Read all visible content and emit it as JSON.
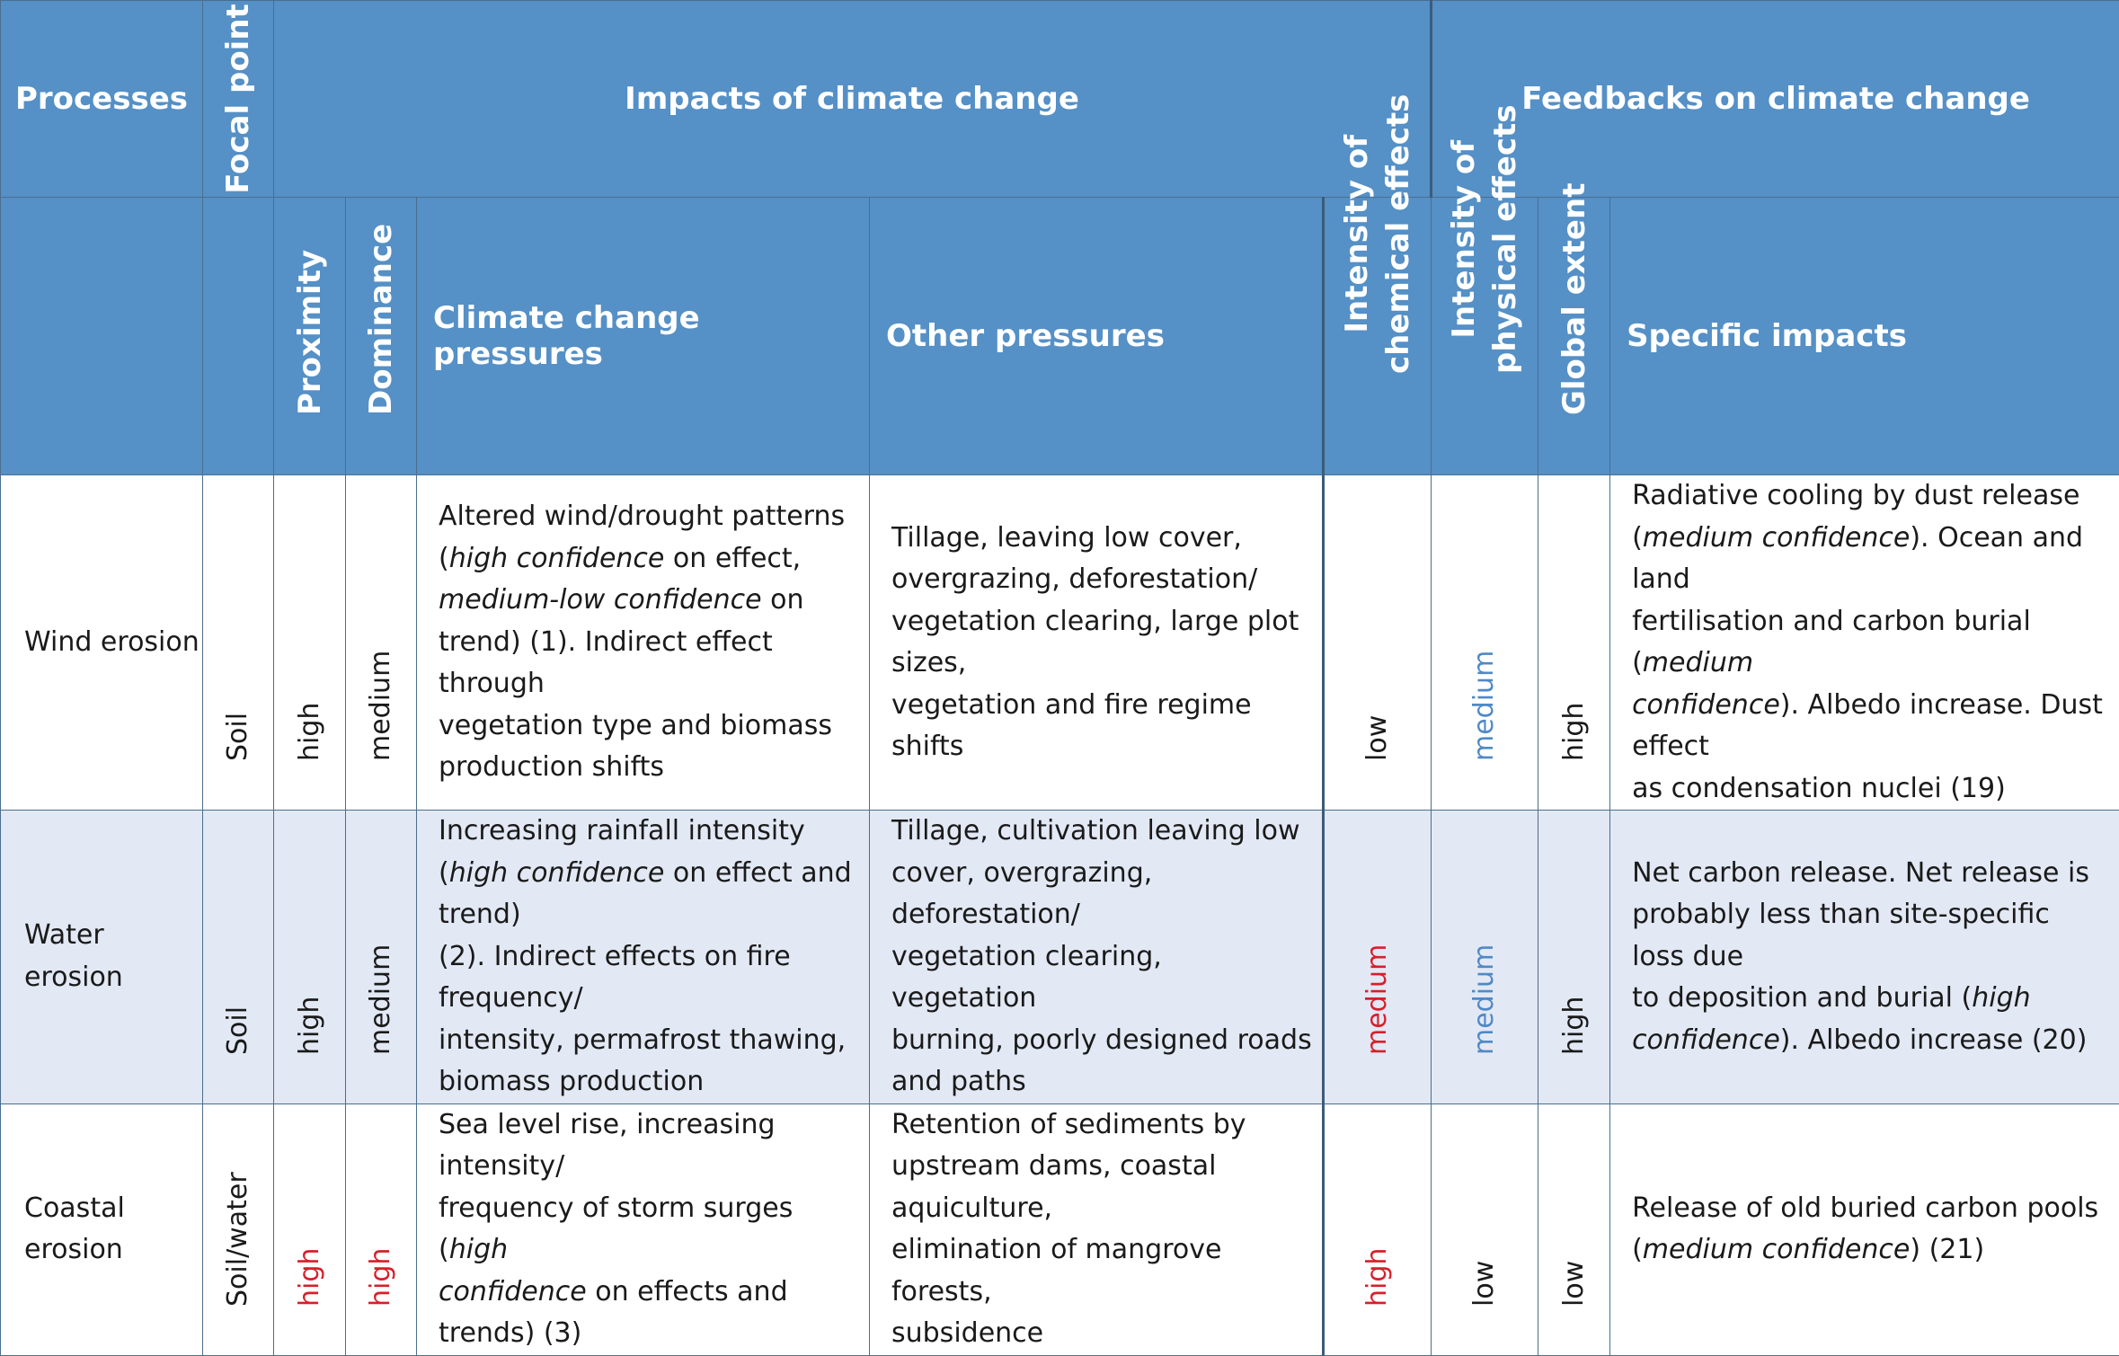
{
  "header": {
    "processes": "Processes",
    "focal_point": "Focal point",
    "impacts": "Impacts of climate change",
    "feedbacks": "Feedbacks on climate change",
    "proximity": "Proximity",
    "dominance": "Dominance",
    "climate_pressures": "Climate change pressures",
    "other_pressures": "Other pressures",
    "chem_line1": "Intensity of",
    "chem_line2": "chemical effects",
    "phys_line1": "Intensity of",
    "phys_line2": "physical effects",
    "global_extent": "Global extent",
    "specific_impacts": "Specific impacts"
  },
  "rows": [
    {
      "process": "Wind erosion",
      "focal": "Soil",
      "proximity": "high",
      "dominance": "medium",
      "climate_pressures": [
        "Altered wind/drought patterns",
        "(",
        "high confidence",
        " on effect,",
        "medium-low confidence",
        " on",
        "trend) (1). Indirect effect through",
        "vegetation type and biomass",
        "production shifts"
      ],
      "other_pressures": [
        "Tillage, leaving low cover,",
        "overgrazing, deforestation/",
        "vegetation clearing, large plot sizes,",
        "vegetation and fire regime shifts"
      ],
      "chemical": "low",
      "physical": "medium",
      "global_extent": "high",
      "specific_impacts": [
        "Radiative cooling by dust release",
        "(",
        "medium confidence",
        "). Ocean and land",
        "fertilisation and carbon burial (",
        "medium",
        "confidence",
        "). Albedo increase. Dust effect",
        "as condensation nuclei (19)"
      ]
    },
    {
      "process": "Water erosion",
      "focal": "Soil",
      "proximity": "high",
      "dominance": "medium",
      "climate_pressures": [
        "Increasing rainfall intensity",
        "(",
        "high confidence",
        " on effect and trend)",
        "(2). Indirect effects on fire frequency/",
        "intensity, permafrost thawing,",
        "biomass production"
      ],
      "other_pressures": [
        "Tillage, cultivation leaving low",
        "cover, overgrazing, deforestation/",
        "vegetation clearing, vegetation",
        "burning, poorly designed roads",
        "and paths"
      ],
      "chemical": "medium",
      "physical": "medium",
      "global_extent": "high",
      "specific_impacts": [
        "Net carbon release. Net release is",
        "probably less than site-specific loss due",
        "to deposition and burial (",
        "high",
        "confidence",
        "). Albedo increase (20)"
      ]
    },
    {
      "process_line1": "Coastal",
      "process_line2": "erosion",
      "focal": "Soil/water",
      "proximity": "high",
      "dominance": "high",
      "climate_pressures": [
        "Sea level rise, increasing intensity/",
        "frequency of storm surges (",
        "high",
        "confidence",
        " on effects and trends) (3)"
      ],
      "other_pressures": [
        "Retention of sediments by",
        "upstream dams, coastal aquiculture,",
        "elimination of mangrove forests,",
        "subsidence"
      ],
      "chemical": "high",
      "physical": "low",
      "global_extent": "low",
      "specific_impacts": [
        "Release of old buried carbon pools",
        "(",
        "medium confidence",
        ") (21)"
      ]
    }
  ],
  "colors": {
    "header_bg": "#5590c6",
    "alt_row_bg": "#e2e8f4",
    "red": "#d6202a",
    "blue": "#4f89c6"
  }
}
